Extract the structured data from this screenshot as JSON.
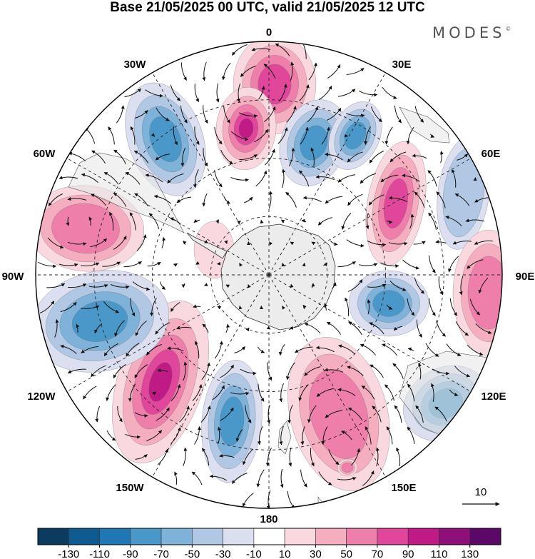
{
  "title": "Base 21/05/2025 00 UTC, valid 21/05/2025 12 UTC",
  "logo": "MODES",
  "logo_mark": "©",
  "lon_labels": [
    "0",
    "30E",
    "60E",
    "90E",
    "120E",
    "150E",
    "180",
    "150W",
    "120W",
    "90W",
    "60W",
    "30W"
  ],
  "vector_scale_label": "10",
  "colorbar": {
    "ticks": [
      "-130",
      "-110",
      "-90",
      "-70",
      "-50",
      "-30",
      "-10",
      "10",
      "30",
      "50",
      "70",
      "90",
      "110",
      "130"
    ],
    "colors": [
      "#0b3b5e",
      "#0f5b8f",
      "#1f78b4",
      "#4a98c9",
      "#7fb2d9",
      "#b0c8e4",
      "#dcdff0",
      "#ffffff",
      "#f9d9df",
      "#f5aec0",
      "#ee7fab",
      "#e0479a",
      "#c01a86",
      "#8e0f78",
      "#5a0a66"
    ]
  },
  "map": {
    "projection": "south polar stereographic",
    "anomaly_centers": [
      {
        "sign": "positive",
        "location": "near 0"
      },
      {
        "sign": "negative",
        "location": "near 30W"
      },
      {
        "sign": "negative",
        "location": "near 30E"
      },
      {
        "sign": "positive",
        "location": "near 60E"
      },
      {
        "sign": "negative",
        "location": "near 60E outer"
      },
      {
        "sign": "positive",
        "location": "near 90E outer"
      },
      {
        "sign": "negative",
        "location": "near 90E inner"
      },
      {
        "sign": "negative",
        "location": "near 120E"
      },
      {
        "sign": "positive",
        "location": "near 150E"
      },
      {
        "sign": "negative",
        "location": "near 160W"
      },
      {
        "sign": "positive",
        "location": "near 140W"
      },
      {
        "sign": "negative",
        "location": "near 100W"
      },
      {
        "sign": "positive",
        "location": "near 75W"
      }
    ]
  }
}
